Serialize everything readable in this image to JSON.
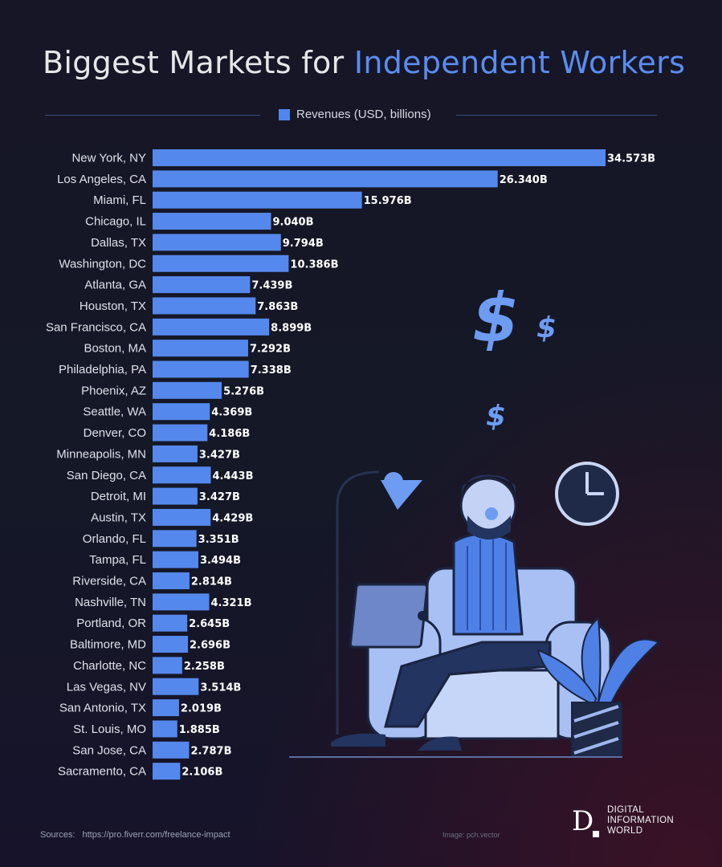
{
  "header": {
    "title_part1": "Biggest Markets for ",
    "title_part2": "Independent Workers"
  },
  "legend": {
    "label": "Revenues (USD, billions)",
    "color": "#4f86ee"
  },
  "chart_data": {
    "type": "bar",
    "orientation": "horizontal",
    "title": "Biggest Markets for Independent Workers",
    "series": [
      {
        "name": "Revenues (USD, billions)",
        "values": [
          34.573,
          26.34,
          15.976,
          9.04,
          9.794,
          10.386,
          7.439,
          7.863,
          8.899,
          7.292,
          7.338,
          5.276,
          4.369,
          4.186,
          3.427,
          4.443,
          3.427,
          4.429,
          3.351,
          3.494,
          2.814,
          4.321,
          2.645,
          2.696,
          2.258,
          3.514,
          2.019,
          1.885,
          2.787,
          2.106
        ]
      }
    ],
    "categories": [
      "New York, NY",
      "Los Angeles, CA",
      "Miami, FL",
      "Chicago, IL",
      "Dallas, TX",
      "Washington, DC",
      "Atlanta, GA",
      "Houston, TX",
      "San Francisco, CA",
      "Boston, MA",
      "Philadelphia, PA",
      "Phoenix, AZ",
      "Seattle, WA",
      "Denver, CO",
      "Minneapolis, MN",
      "San Diego, CA",
      "Detroit, MI",
      "Austin, TX",
      "Orlando, FL",
      "Tampa, FL",
      "Riverside, CA",
      "Nashville, TN",
      "Portland, OR",
      "Baltimore, MD",
      "Charlotte, NC",
      "Las Vegas, NV",
      "San Antonio, TX",
      "St. Louis, MO",
      "San Jose, CA",
      "Sacramento, CA"
    ],
    "value_labels": [
      "34.573B",
      "26.340B",
      "15.976B",
      "9.040B",
      "9.794B",
      "10.386B",
      "7.439B",
      "7.863B",
      "8.899B",
      "7.292B",
      "7.338B",
      "5.276B",
      "4.369B",
      "4.186B",
      "3.427B",
      "4.443B",
      "3.427B",
      "4.429B",
      "3.351B",
      "3.494B",
      "2.814B",
      "4.321B",
      "2.645B",
      "2.696B",
      "2.258B",
      "3.514B",
      "2.019B",
      "1.885B",
      "2.787B",
      "2.106B"
    ],
    "bar_color": "#5588ec",
    "legend_position": "top"
  },
  "footer": {
    "sources_label": "Sources:",
    "sources_url": "https://pro.fiverr.com/freelance-impact",
    "image_credit": "Image: pch.vector",
    "brand_line1": "DIGITAL",
    "brand_line2": "INFORMATION",
    "brand_line3": "WORLD",
    "brand_mark": "D"
  }
}
